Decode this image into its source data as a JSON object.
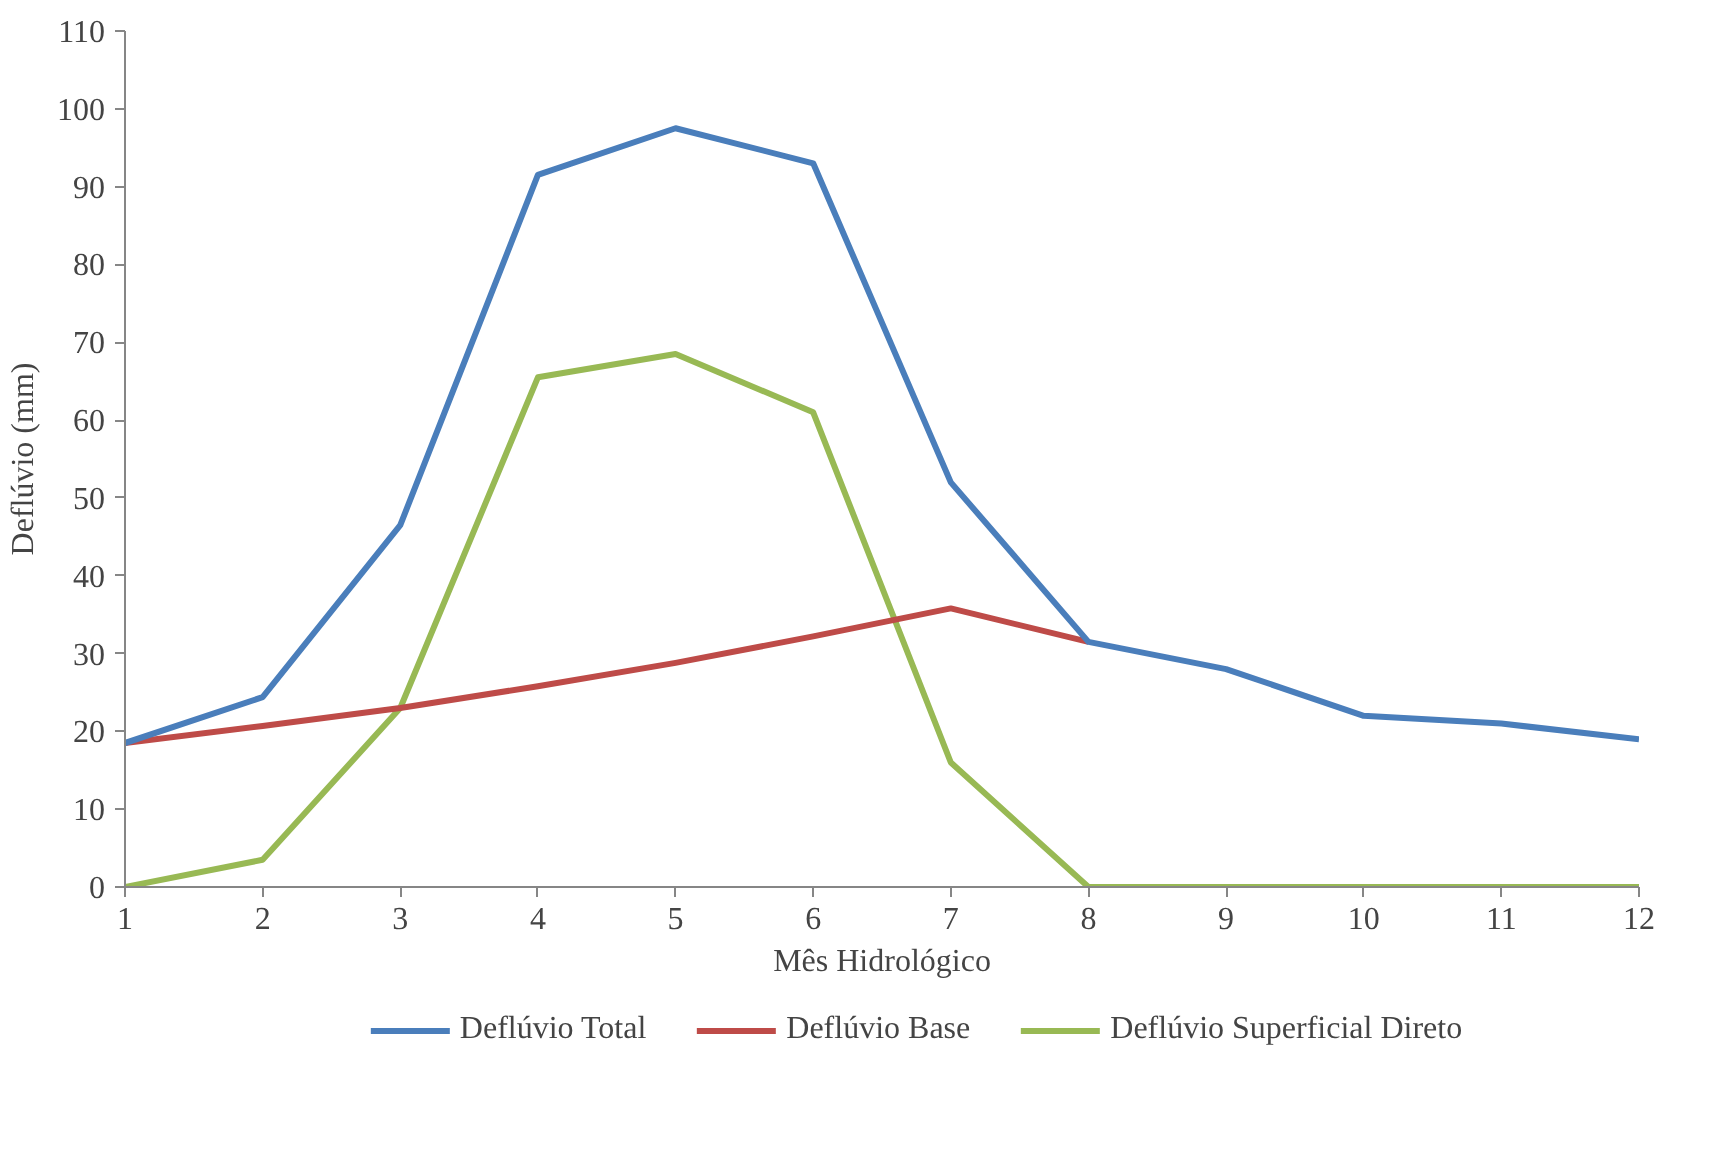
{
  "chart_data": {
    "type": "line",
    "xlabel": "Mês Hidrológico",
    "ylabel": "Deflúvio (mm)",
    "x": [
      1,
      2,
      3,
      4,
      5,
      6,
      7,
      8,
      9,
      10,
      11,
      12
    ],
    "xlim": [
      1,
      12
    ],
    "xticks": [
      1,
      2,
      3,
      4,
      5,
      6,
      7,
      8,
      9,
      10,
      11,
      12
    ],
    "ylim": [
      0,
      110
    ],
    "yticks": [
      0,
      10,
      20,
      30,
      40,
      50,
      60,
      70,
      80,
      90,
      100,
      110
    ],
    "grid": false,
    "legend": "bottom",
    "marker": "none",
    "line_style": "solid",
    "series": [
      {
        "name": "Deflúvio Total",
        "color": "#4a7ebb",
        "values": [
          18.5,
          24.4,
          46.5,
          91.5,
          97.5,
          93,
          52,
          31.5,
          28,
          22,
          21,
          19
        ]
      },
      {
        "name": "Deflúvio Base",
        "color": "#be4b48",
        "values": [
          18.5,
          20.7,
          23,
          25.8,
          28.8,
          32.2,
          35.8,
          31.5,
          null,
          null,
          null,
          null
        ]
      },
      {
        "name": "Deflúvio Superficial Direto",
        "color": "#98b954",
        "values": [
          0,
          3.5,
          23,
          65.5,
          68.5,
          61,
          16,
          0,
          0,
          0,
          0,
          0
        ]
      }
    ]
  }
}
